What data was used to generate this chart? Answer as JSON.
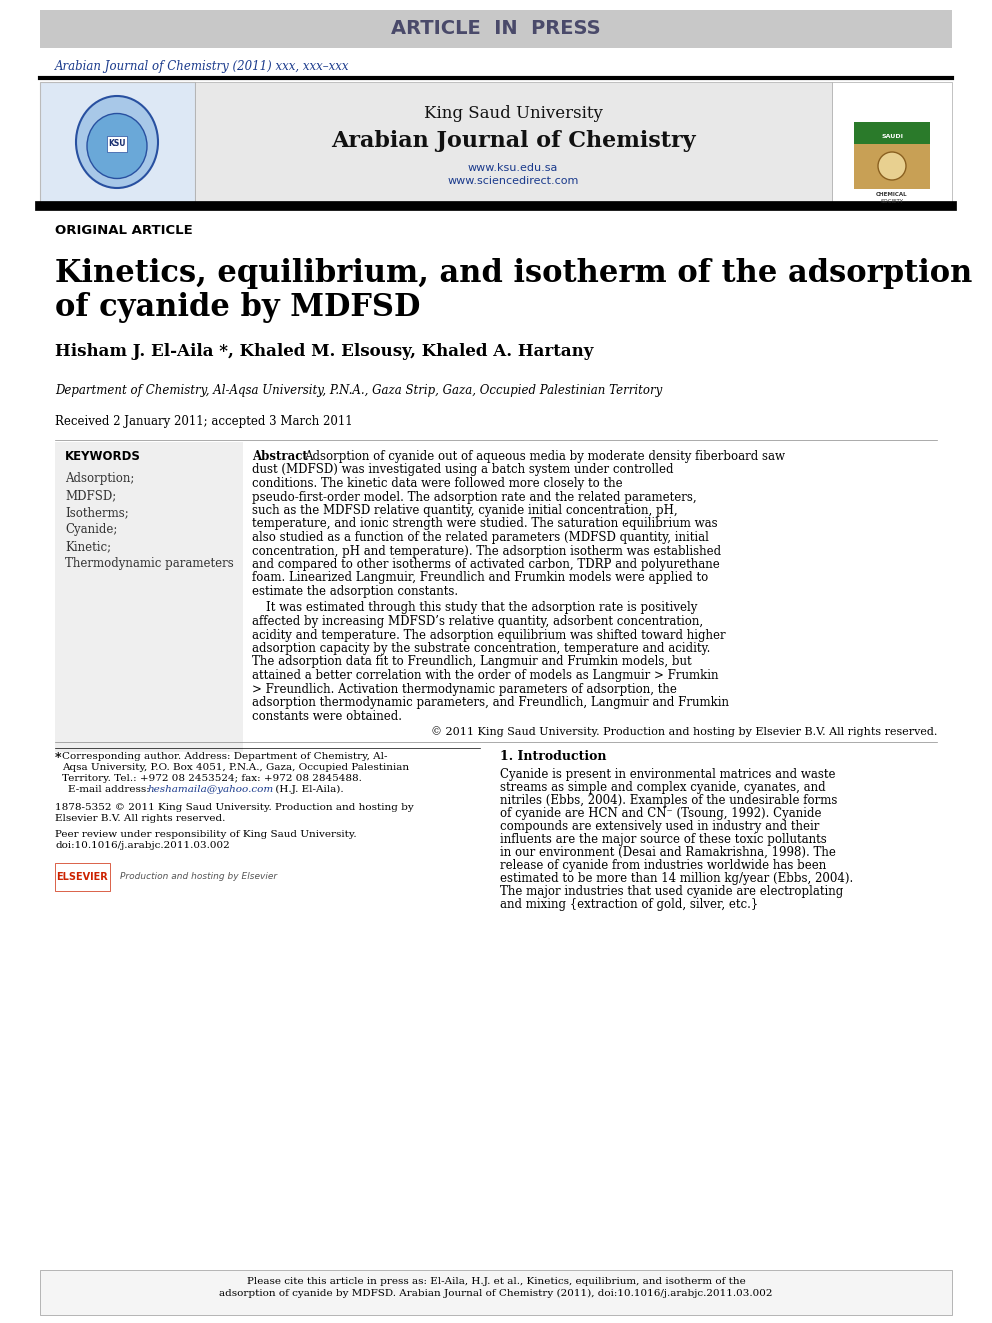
{
  "page_bg": "#ffffff",
  "header_bar_color": "#c8c8c8",
  "header_bar_text": "ARTICLE  IN  PRESS",
  "header_bar_text_color": "#4a4a6a",
  "journal_ref_text": "Arabian Journal of Chemistry (2011) xxx, xxx–xxx",
  "journal_ref_color": "#1a3a8c",
  "section_label": "ORIGINAL ARTICLE",
  "article_title_line1": "Kinetics, equilibrium, and isotherm of the adsorption",
  "article_title_line2": "of cyanide by MDFSD",
  "authors": "Hisham J. El-Aila *, Khaled M. Elsousy, Khaled A. Hartany",
  "affiliation": "Department of Chemistry, Al-Aqsa University, P.N.A., Gaza Strip, Gaza, Occupied Palestinian Territory",
  "received": "Received 2 January 2011; accepted 3 March 2011",
  "keywords_header": "KEYWORDS",
  "keywords": [
    "Adsorption;",
    "MDFSD;",
    "Isotherms;",
    "Cyanide;",
    "Kinetic;",
    "Thermodynamic parameters"
  ],
  "abstract_label": "Abstract",
  "abstract_p1": "Adsorption of cyanide out of aqueous media by moderate density fiberboard saw dust (MDFSD) was investigated using a batch system under controlled conditions. The kinetic data were followed more closely to the pseudo-first-order model. The adsorption rate and the related parameters, such as the MDFSD relative quantity, cyanide initial concentration, pH, temperature, and ionic strength were studied. The saturation equilibrium was also studied as a function of the related parameters (MDFSD quantity, initial concentration, pH and temperature). The adsorption isotherm was established and compared to other isotherms of activated carbon, TDRP and polyurethane foam. Linearized Langmuir, Freundlich and Frumkin models were applied to estimate the adsorption constants.",
  "abstract_p2": "It was estimated through this study that the adsorption rate is positively affected by increasing MDFSD’s relative quantity, adsorbent concentration, acidity and temperature. The adsorption equilibrium was shifted toward higher adsorption capacity by the substrate concentration, temperature and acidity. The adsorption data fit to Freundlich, Langmuir and Frumkin models, but attained a better correlation with the order of models as Langmuir > Frumkin > Freundlich. Activation thermodynamic parameters of adsorption, the adsorption thermodynamic parameters, and Freundlich, Langmuir and Frumkin constants were obtained.",
  "copyright": "© 2011 King Saud University. Production and hosting by Elsevier B.V. All rights reserved.",
  "intro_header": "1. Introduction",
  "intro_text": "Cyanide is present in environmental matrices and waste streams as simple and complex cyanide, cyanates, and nitriles (Ebbs, 2004). Examples of the undesirable forms of cyanide are HCN and CN⁻ (Tsoung, 1992). Cyanide compounds are extensively used in industry and their influents are the major source of these toxic pollutants in our environment (Desai and Ramakrishna, 1998). The release of cyanide from industries worldwide has been estimated to be more than 14 million kg/year (Ebbs, 2004). The major industries that used cyanide are electroplating and mixing {extraction of gold, silver, etc.}",
  "cite_footer": "Please cite this article in press as: El-Aila, H.J. et al., Kinetics, equilibrium, and isotherm of the adsorption of cyanide by MDFSD. Arabian Journal of Chemistry (2011), doi:10.1016/j.arabjc.2011.03.002",
  "ksu_title": "King Saud University",
  "journal_title": "Arabian Journal of Chemistry",
  "website1": "www.ksu.edu.sa",
  "website2": "www.sciencedirect.com",
  "header_box_bg": "#e8e8e8"
}
